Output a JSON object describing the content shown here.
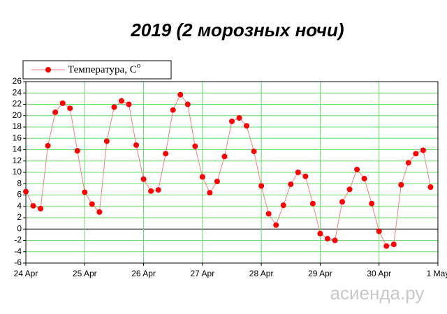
{
  "chart_data": {
    "type": "line",
    "title": "2019 (2 морозных ночи)",
    "x": [
      0,
      0.125,
      0.25,
      0.375,
      0.5,
      0.625,
      0.75,
      0.875,
      1,
      1.125,
      1.25,
      1.375,
      1.5,
      1.625,
      1.75,
      1.875,
      2,
      2.125,
      2.25,
      2.375,
      2.5,
      2.625,
      2.75,
      2.875,
      3,
      3.125,
      3.25,
      3.375,
      3.5,
      3.625,
      3.75,
      3.875,
      4,
      4.125,
      4.25,
      4.375,
      4.5,
      4.625,
      4.75,
      4.875,
      5,
      5.125,
      5.25,
      5.375,
      5.5,
      5.625,
      5.75,
      5.875,
      6,
      6.125,
      6.25,
      6.375,
      6.5,
      6.625,
      6.75,
      6.875
    ],
    "series": [
      {
        "name": "Температура, C",
        "name_sup": "o",
        "color": "#ff0000",
        "line_color": "#f08080",
        "values": [
          6.6,
          4.1,
          3.6,
          14.7,
          20.6,
          22.2,
          21.3,
          13.8,
          6.5,
          4.4,
          3.0,
          15.5,
          21.5,
          22.6,
          22.0,
          14.8,
          8.8,
          6.7,
          6.9,
          13.3,
          21.0,
          23.7,
          22.0,
          14.6,
          9.2,
          6.4,
          8.4,
          12.8,
          19.0,
          19.6,
          18.2,
          13.7,
          7.6,
          2.7,
          0.7,
          4.2,
          7.9,
          10.0,
          9.3,
          4.5,
          -0.8,
          -1.7,
          -2.0,
          4.8,
          7.0,
          10.5,
          8.9,
          4.5,
          -0.4,
          -3.0,
          -2.7,
          7.8,
          11.7,
          13.3,
          13.9,
          7.4
        ]
      }
    ],
    "xlim": [
      0,
      7
    ],
    "xticks": [
      {
        "value": 0,
        "label": "24 Apr"
      },
      {
        "value": 1,
        "label": "25 Apr"
      },
      {
        "value": 2,
        "label": "26 Apr"
      },
      {
        "value": 3,
        "label": "27 Apr"
      },
      {
        "value": 4,
        "label": "28 Apr"
      },
      {
        "value": 5,
        "label": "29 Apr"
      },
      {
        "value": 6,
        "label": "30 Apr"
      },
      {
        "value": 7,
        "label": "1 May"
      }
    ],
    "ylim": [
      -6,
      26
    ],
    "yticks": [
      -6,
      -4,
      -2,
      0,
      2,
      4,
      6,
      8,
      10,
      12,
      14,
      16,
      18,
      20,
      22,
      24,
      26
    ],
    "grid": true,
    "grid_color": "#66dd66",
    "legend": "top-left",
    "watermark": "асиенда.ру"
  }
}
